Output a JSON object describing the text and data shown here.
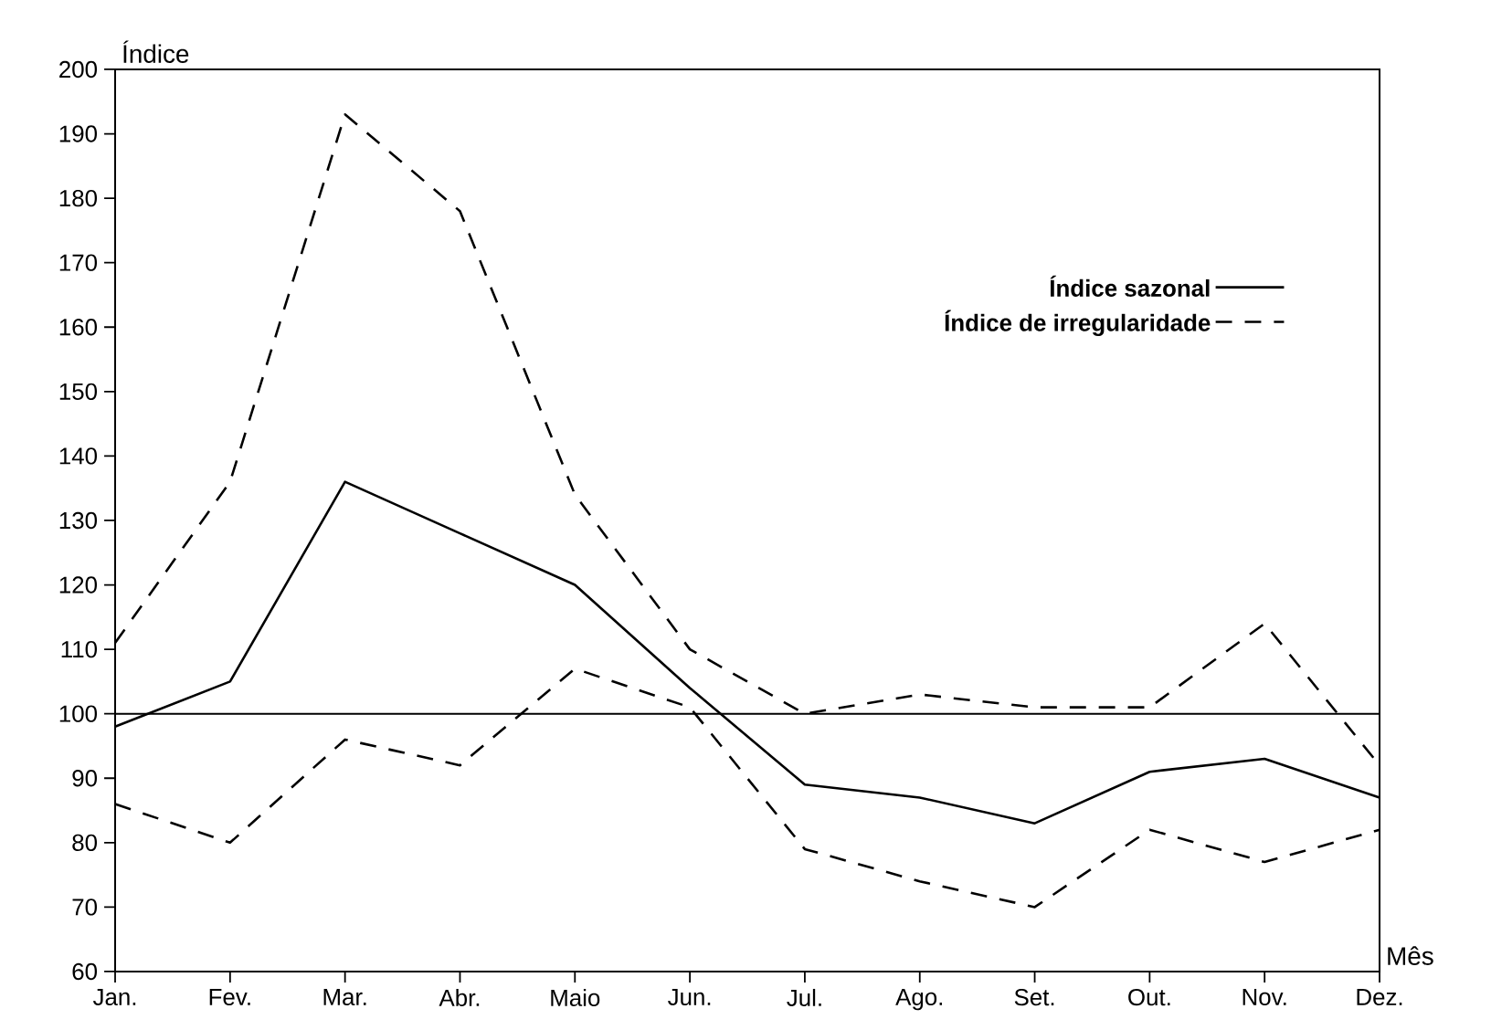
{
  "chart_data": {
    "type": "line",
    "xlabel": "Mês",
    "ylabel": "Índice",
    "categories": [
      "Jan.",
      "Fev.",
      "Mar.",
      "Abr.",
      "Maio",
      "Jun.",
      "Jul.",
      "Ago.",
      "Set.",
      "Out.",
      "Nov.",
      "Dez."
    ],
    "series": [
      {
        "name": "Índice sazonal",
        "color": "#000000",
        "line_style": "solid",
        "values": [
          98,
          105,
          136,
          128,
          120,
          104,
          89,
          87,
          83,
          91,
          93,
          87
        ]
      },
      {
        "name": "Índice de irregularidade",
        "color": "#000000",
        "line_style": "dashed",
        "values": [
          111,
          136,
          193,
          178,
          134,
          110,
          100,
          103,
          101,
          101,
          114,
          92
        ]
      },
      {
        "color": "#000000",
        "line_style": "dashed",
        "values": [
          86,
          80,
          96,
          92,
          107,
          101,
          79,
          74,
          70,
          82,
          77,
          82
        ]
      }
    ],
    "ylim": [
      60,
      200
    ],
    "yticks": [
      60,
      70,
      80,
      90,
      100,
      110,
      120,
      130,
      140,
      150,
      160,
      170,
      180,
      190,
      200
    ],
    "ref_lines": [
      {
        "axis": "y",
        "value": 100,
        "color": "#000000"
      }
    ],
    "legend": "top right",
    "marker": "none",
    "grid": false
  }
}
